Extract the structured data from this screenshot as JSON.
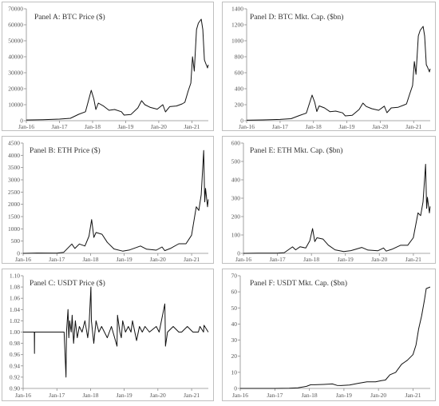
{
  "chart_data": [
    {
      "id": "A",
      "type": "line",
      "title": "Panel A: BTC Price ($)",
      "ylim": [
        0,
        70000
      ],
      "yticks": [
        "0",
        "10000",
        "20000",
        "30000",
        "40000",
        "50000",
        "60000",
        "70000"
      ],
      "xticks": [
        "Jan-16",
        "Jan-17",
        "Jan-18",
        "Jan-19",
        "Jan-20",
        "Jan-21"
      ],
      "series": [
        {
          "x": [
            "2016-01-01",
            "2016-07-01",
            "2017-01-01",
            "2017-05-01",
            "2017-08-01",
            "2017-10-15",
            "2017-12-17",
            "2018-01-15",
            "2018-02-06",
            "2018-03-05",
            "2018-05-01",
            "2018-07-01",
            "2018-09-01",
            "2018-11-15",
            "2018-12-15",
            "2019-03-01",
            "2019-05-15",
            "2019-06-26",
            "2019-08-01",
            "2019-10-01",
            "2019-12-15",
            "2020-02-15",
            "2020-03-15",
            "2020-05-01",
            "2020-07-15",
            "2020-09-15",
            "2020-10-15",
            "2020-11-20",
            "2020-12-20",
            "2021-01-08",
            "2021-01-27",
            "2021-02-21",
            "2021-03-13",
            "2021-04-14",
            "2021-05-01",
            "2021-05-19",
            "2021-06-01",
            "2021-06-22",
            "2021-06-30"
          ],
          "y": [
            430,
            670,
            1000,
            1500,
            4000,
            5600,
            19000,
            13500,
            7000,
            11000,
            9200,
            6500,
            7000,
            5600,
            3500,
            3900,
            8000,
            12500,
            10000,
            8300,
            7200,
            10000,
            5500,
            8800,
            9200,
            10500,
            11500,
            18500,
            23500,
            40000,
            31000,
            57000,
            61000,
            63500,
            57000,
            38000,
            36000,
            33000,
            35000
          ]
        }
      ]
    },
    {
      "id": "B",
      "type": "line",
      "title": "Panel B: ETH Price ($)",
      "ylim": [
        0,
        4500
      ],
      "yticks": [
        "0",
        "500",
        "1000",
        "1500",
        "2000",
        "2500",
        "3000",
        "3500",
        "4000",
        "4500"
      ],
      "xticks": [
        "Jan-16",
        "Jan-17",
        "Jan-18",
        "Jan-19",
        "Jan-20",
        "Jan-21"
      ],
      "series": [
        {
          "x": [
            "2016-01-01",
            "2016-06-01",
            "2017-01-01",
            "2017-03-15",
            "2017-06-12",
            "2017-07-15",
            "2017-09-01",
            "2017-11-01",
            "2017-12-15",
            "2018-01-13",
            "2018-02-06",
            "2018-03-01",
            "2018-05-05",
            "2018-07-01",
            "2018-09-12",
            "2018-12-15",
            "2019-03-01",
            "2019-06-26",
            "2019-09-01",
            "2019-12-15",
            "2020-02-15",
            "2020-03-15",
            "2020-05-15",
            "2020-08-15",
            "2020-11-01",
            "2020-12-31",
            "2021-02-20",
            "2021-03-20",
            "2021-04-15",
            "2021-05-12",
            "2021-05-23",
            "2021-06-01",
            "2021-06-22",
            "2021-06-30"
          ],
          "y": [
            1,
            12,
            8,
            40,
            380,
            200,
            380,
            300,
            700,
            1380,
            650,
            850,
            780,
            450,
            180,
            90,
            140,
            300,
            170,
            130,
            260,
            110,
            200,
            390,
            390,
            740,
            1900,
            1750,
            2400,
            4200,
            2100,
            2650,
            1900,
            2200
          ]
        }
      ]
    },
    {
      "id": "C",
      "type": "line",
      "title": "Panel C: USDT Price ($)",
      "ylim": [
        0.9,
        1.1
      ],
      "yticks": [
        "0.90",
        "0.92",
        "0.94",
        "0.96",
        "0.98",
        "1.00",
        "1.02",
        "1.04",
        "1.06",
        "1.08",
        "1.10"
      ],
      "xticks": [
        "Jan-16",
        "Jan-17",
        "Jan-18",
        "Jan-19",
        "Jan-20",
        "Jan-21"
      ],
      "series": [
        {
          "x": [
            "2016-01-01",
            "2016-05-01",
            "2016-05-03",
            "2016-05-05",
            "2016-12-31",
            "2017-03-20",
            "2017-04-10",
            "2017-04-15",
            "2017-05-01",
            "2017-05-10",
            "2017-05-20",
            "2017-06-05",
            "2017-06-15",
            "2017-07-01",
            "2017-07-20",
            "2017-08-10",
            "2017-09-01",
            "2017-10-01",
            "2017-11-01",
            "2017-12-01",
            "2017-12-15",
            "2018-01-05",
            "2018-01-10",
            "2018-02-05",
            "2018-03-01",
            "2018-04-01",
            "2018-05-01",
            "2018-07-01",
            "2018-08-15",
            "2018-10-15",
            "2018-10-20",
            "2018-11-15",
            "2018-12-01",
            "2018-12-15",
            "2019-01-15",
            "2019-02-15",
            "2019-03-15",
            "2019-04-01",
            "2019-05-15",
            "2019-06-15",
            "2019-07-15",
            "2019-08-15",
            "2019-10-01",
            "2019-12-15",
            "2020-01-15",
            "2020-03-16",
            "2020-03-20",
            "2020-03-23",
            "2020-04-15",
            "2020-06-15",
            "2020-08-15",
            "2020-09-15",
            "2020-11-15",
            "2021-01-15",
            "2021-02-15",
            "2021-03-15",
            "2021-04-01",
            "2021-05-10",
            "2021-05-15",
            "2021-06-30"
          ],
          "y": [
            1.0,
            1.0,
            0.962,
            1.0,
            1.0,
            1.0,
            0.92,
            1.0,
            1.04,
            0.99,
            1.02,
            1.0,
            1.03,
            0.98,
            1.02,
            0.99,
            1.01,
            1.0,
            1.02,
            0.99,
            1.01,
            1.08,
            1.02,
            0.98,
            1.02,
            1.0,
            1.01,
            0.99,
            1.01,
            0.975,
            1.03,
            1.0,
            0.99,
            1.02,
            1.0,
            1.01,
            1.0,
            1.02,
            0.985,
            1.01,
            1.0,
            1.01,
            1.0,
            1.01,
            1.0,
            1.05,
            1.02,
            0.975,
            1.0,
            1.01,
            1.0,
            1.0,
            1.01,
            1.0,
            1.0,
            1.0,
            1.01,
            1.0,
            1.012,
            1.0
          ]
        }
      ]
    },
    {
      "id": "D",
      "type": "line",
      "title": "Panel D: BTC Mkt. Cap. ($bn)",
      "ylim": [
        0,
        1400
      ],
      "yticks": [
        "0",
        "200",
        "400",
        "600",
        "800",
        "1000",
        "1200",
        "1400"
      ],
      "xticks": [
        "Jan-16",
        "Jan-17",
        "Jan-18",
        "Jan-19",
        "Jan-20",
        "Jan-21"
      ],
      "series": [
        {
          "x": [
            "2016-01-01",
            "2016-07-01",
            "2017-01-01",
            "2017-05-01",
            "2017-08-01",
            "2017-10-15",
            "2017-12-17",
            "2018-01-15",
            "2018-02-06",
            "2018-03-05",
            "2018-05-01",
            "2018-07-01",
            "2018-09-01",
            "2018-11-15",
            "2018-12-15",
            "2019-03-01",
            "2019-05-15",
            "2019-06-26",
            "2019-08-01",
            "2019-10-01",
            "2019-12-15",
            "2020-02-15",
            "2020-03-15",
            "2020-05-01",
            "2020-07-15",
            "2020-09-15",
            "2020-10-15",
            "2020-11-20",
            "2020-12-20",
            "2021-01-08",
            "2021-01-27",
            "2021-02-21",
            "2021-03-13",
            "2021-04-14",
            "2021-05-01",
            "2021-05-19",
            "2021-06-01",
            "2021-06-22",
            "2021-06-30"
          ],
          "y": [
            6,
            10,
            16,
            25,
            65,
            95,
            320,
            230,
            115,
            185,
            160,
            112,
            120,
            98,
            60,
            68,
            140,
            220,
            178,
            150,
            130,
            182,
            100,
            160,
            168,
            195,
            210,
            340,
            440,
            740,
            580,
            1060,
            1130,
            1180,
            1060,
            700,
            670,
            610,
            650
          ]
        }
      ]
    },
    {
      "id": "E",
      "type": "line",
      "title": "Panel E: ETH Mkt. Cap. ($bn)",
      "ylim": [
        0,
        600
      ],
      "yticks": [
        "0",
        "100",
        "200",
        "300",
        "400",
        "500",
        "600"
      ],
      "xticks": [
        "Jan-16",
        "Jan-17",
        "Jan-18",
        "Jan-19",
        "Jan-20",
        "Jan-21"
      ],
      "series": [
        {
          "x": [
            "2016-01-01",
            "2016-06-01",
            "2017-01-01",
            "2017-03-15",
            "2017-06-12",
            "2017-07-15",
            "2017-09-01",
            "2017-11-01",
            "2017-12-15",
            "2018-01-13",
            "2018-02-06",
            "2018-03-01",
            "2018-05-05",
            "2018-07-01",
            "2018-09-12",
            "2018-12-15",
            "2019-03-01",
            "2019-06-26",
            "2019-09-01",
            "2019-12-15",
            "2020-02-15",
            "2020-03-15",
            "2020-05-15",
            "2020-08-15",
            "2020-11-01",
            "2020-12-31",
            "2021-02-20",
            "2021-03-20",
            "2021-04-15",
            "2021-05-12",
            "2021-05-23",
            "2021-06-01",
            "2021-06-22",
            "2021-06-30"
          ],
          "y": [
            0.1,
            1,
            0.7,
            4,
            35,
            19,
            36,
            29,
            69,
            135,
            64,
            85,
            78,
            45,
            19,
            10,
            15,
            32,
            18,
            14,
            29,
            12,
            22,
            44,
            44,
            85,
            220,
            205,
            280,
            485,
            245,
            305,
            220,
            255
          ]
        }
      ]
    },
    {
      "id": "F",
      "type": "line",
      "title": "Panel F: USDT Mkt. Cap. ($bn)",
      "ylim": [
        0,
        70
      ],
      "yticks": [
        "0",
        "10",
        "20",
        "30",
        "40",
        "50",
        "60",
        "70"
      ],
      "xticks": [
        "Jan-16",
        "Jan-17",
        "Jan-18",
        "Jan-19",
        "Jan-20",
        "Jan-21"
      ],
      "series": [
        {
          "x": [
            "2016-01-01",
            "2017-01-01",
            "2017-06-01",
            "2017-09-01",
            "2017-12-01",
            "2018-01-15",
            "2018-03-01",
            "2018-06-01",
            "2018-09-01",
            "2018-10-20",
            "2018-12-01",
            "2019-03-01",
            "2019-06-01",
            "2019-09-01",
            "2019-12-01",
            "2020-02-01",
            "2020-03-15",
            "2020-05-01",
            "2020-07-01",
            "2020-09-01",
            "2020-11-01",
            "2020-12-31",
            "2021-02-01",
            "2021-03-01",
            "2021-04-01",
            "2021-05-01",
            "2021-05-20",
            "2021-06-30"
          ],
          "y": [
            0,
            0.01,
            0.1,
            0.4,
            1.3,
            2.3,
            2.3,
            2.5,
            2.8,
            1.9,
            1.8,
            2.1,
            3.2,
            4.1,
            4.1,
            4.8,
            5.2,
            8.5,
            10,
            15,
            17.5,
            21,
            27,
            37,
            45,
            55,
            62,
            63
          ]
        }
      ]
    }
  ]
}
